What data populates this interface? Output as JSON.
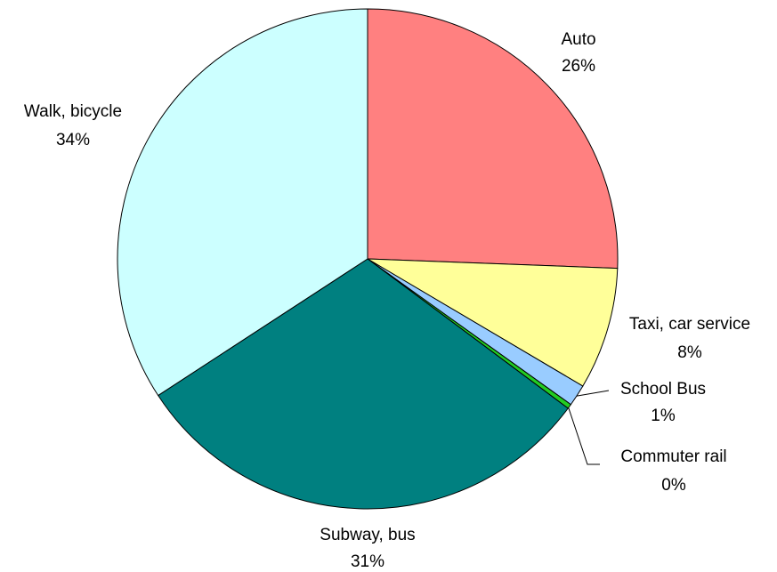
{
  "chart_data": {
    "type": "pie",
    "categories": [
      "Auto",
      "Taxi, car service",
      "School Bus",
      "Commuter rail",
      "Subway, bus",
      "Walk, bicycle"
    ],
    "values": [
      25.6,
      7.9,
      1.4,
      0.3,
      30.6,
      34.2
    ],
    "value_labels": [
      "26%",
      "8%",
      "1%",
      "0%",
      "31%",
      "34%"
    ],
    "colors": [
      "#FF8080",
      "#FFFF99",
      "#99CCFF",
      "#22CC22",
      "#008080",
      "#CCFFFF"
    ]
  }
}
